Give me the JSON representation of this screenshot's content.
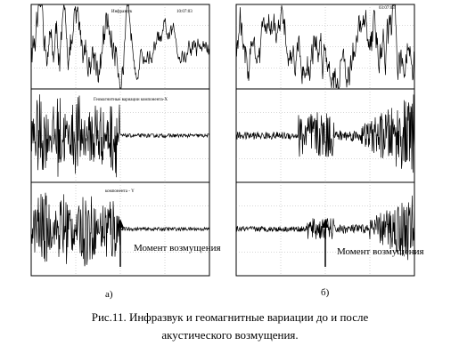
{
  "figure": {
    "panels": [
      {
        "label": "а)",
        "annotation": "Момент возмущения",
        "headers": [
          "Инфразвук",
          "10:07:03",
          "Геомагнитные вариации компонента-Х",
          "компонента - Y"
        ]
      },
      {
        "label": "б)",
        "annotation": "Момент возмущения",
        "headers": [
          "03:07:03"
        ]
      }
    ],
    "caption": [
      "Рис.11. Инфразвук и геомагнитные вариации до и после",
      "акустического возмущения."
    ]
  }
}
